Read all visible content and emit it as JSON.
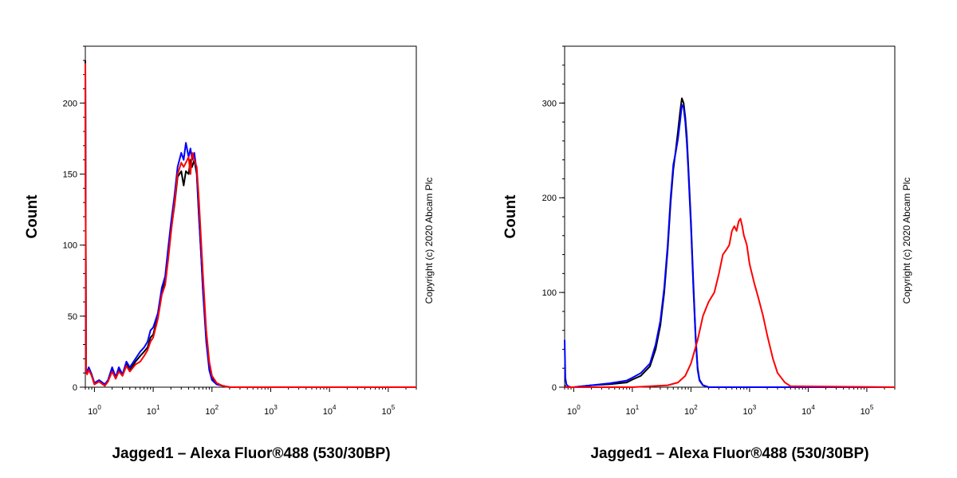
{
  "chart_data": [
    {
      "type": "line",
      "title": "",
      "xlabel": "Jagged1 – Alexa Fluor®488 (530/30BP)",
      "ylabel": "Count",
      "x_scale": "log",
      "xlim": [
        0.7,
        300000
      ],
      "ylim": [
        0,
        240
      ],
      "x_ticks": [
        {
          "base": "10",
          "exp": "0"
        },
        {
          "base": "10",
          "exp": "1"
        },
        {
          "base": "10",
          "exp": "2"
        },
        {
          "base": "10",
          "exp": "3"
        },
        {
          "base": "10",
          "exp": "4"
        },
        {
          "base": "10",
          "exp": "5"
        }
      ],
      "y_ticks": [
        "0",
        "50",
        "100",
        "150",
        "200"
      ],
      "y_tick_values": [
        0,
        50,
        100,
        150,
        200
      ],
      "copyright": "Copyright (c) 2020 Abcam Plc",
      "series": [
        {
          "color": "#000000",
          "x": [
            0.7,
            0.72,
            0.75,
            0.8,
            0.9,
            1.0,
            1.2,
            1.5,
            1.7,
            2.0,
            2.3,
            2.6,
            3.0,
            3.5,
            4,
            5,
            6,
            7,
            8,
            9,
            10,
            12,
            14,
            16,
            18,
            20,
            23,
            26,
            30,
            33,
            36,
            40,
            43,
            46,
            50,
            55,
            60,
            65,
            70,
            80,
            90,
            100,
            120,
            150,
            200,
            300,
            1000,
            10000,
            300000
          ],
          "y": [
            230,
            12,
            10,
            13,
            8,
            2,
            4,
            1,
            4,
            12,
            6,
            12,
            8,
            16,
            12,
            18,
            22,
            25,
            28,
            35,
            37,
            50,
            68,
            75,
            95,
            110,
            128,
            148,
            152,
            142,
            152,
            150,
            160,
            155,
            160,
            150,
            120,
            95,
            70,
            35,
            15,
            6,
            2,
            1,
            0,
            0,
            0,
            0,
            0
          ]
        },
        {
          "color": "#0000ff",
          "x": [
            0.7,
            0.72,
            0.75,
            0.8,
            0.9,
            1.0,
            1.2,
            1.5,
            1.7,
            2.0,
            2.3,
            2.6,
            3.0,
            3.5,
            4,
            5,
            6,
            7,
            8,
            9,
            10,
            12,
            14,
            16,
            18,
            20,
            23,
            26,
            30,
            33,
            36,
            40,
            43,
            46,
            50,
            55,
            60,
            65,
            70,
            80,
            90,
            100,
            120,
            150,
            200,
            300,
            1000,
            10000,
            300000
          ],
          "y": [
            225,
            13,
            11,
            14,
            9,
            3,
            5,
            2,
            5,
            14,
            7,
            14,
            9,
            18,
            14,
            20,
            25,
            28,
            32,
            40,
            42,
            52,
            70,
            78,
            98,
            115,
            135,
            155,
            165,
            160,
            172,
            162,
            168,
            160,
            165,
            152,
            122,
            95,
            68,
            32,
            12,
            5,
            2,
            1,
            0,
            0,
            0,
            0,
            0
          ]
        },
        {
          "color": "#ff0000",
          "x": [
            0.7,
            0.72,
            0.75,
            0.8,
            0.9,
            1.0,
            1.2,
            1.5,
            1.7,
            2.0,
            2.3,
            2.6,
            3.0,
            3.5,
            4,
            5,
            6,
            7,
            8,
            9,
            10,
            12,
            14,
            16,
            18,
            20,
            23,
            26,
            30,
            33,
            36,
            40,
            43,
            46,
            50,
            55,
            60,
            65,
            70,
            80,
            90,
            100,
            120,
            150,
            200,
            300,
            1000,
            10000,
            300000
          ],
          "y": [
            228,
            11,
            9,
            12,
            8,
            2,
            4,
            1,
            4,
            11,
            6,
            11,
            8,
            15,
            11,
            16,
            18,
            22,
            26,
            32,
            35,
            48,
            65,
            72,
            90,
            108,
            130,
            150,
            158,
            155,
            158,
            162,
            150,
            165,
            160,
            155,
            132,
            105,
            80,
            40,
            18,
            8,
            3,
            1,
            0,
            0,
            0,
            0,
            0
          ]
        }
      ]
    },
    {
      "type": "line",
      "title": "",
      "xlabel": "Jagged1 – Alexa Fluor®488 (530/30BP)",
      "ylabel": "Count",
      "x_scale": "log",
      "xlim": [
        0.7,
        300000
      ],
      "ylim": [
        0,
        360
      ],
      "x_ticks": [
        {
          "base": "10",
          "exp": "0"
        },
        {
          "base": "10",
          "exp": "1"
        },
        {
          "base": "10",
          "exp": "2"
        },
        {
          "base": "10",
          "exp": "3"
        },
        {
          "base": "10",
          "exp": "4"
        },
        {
          "base": "10",
          "exp": "5"
        }
      ],
      "y_ticks": [
        "0",
        "100",
        "200",
        "300"
      ],
      "y_tick_values": [
        0,
        100,
        200,
        300
      ],
      "copyright": "Copyright (c) 2020 Abcam Plc",
      "series": [
        {
          "color": "#000000",
          "x": [
            0.7,
            0.72,
            0.75,
            0.8,
            0.9,
            1.0,
            2,
            4,
            8,
            10,
            14,
            20,
            25,
            30,
            35,
            40,
            45,
            50,
            55,
            60,
            65,
            70,
            75,
            80,
            85,
            90,
            100,
            110,
            120,
            130,
            140,
            160,
            200,
            300,
            1000,
            300000
          ],
          "y": [
            2,
            1,
            0,
            0,
            0,
            0,
            2,
            3,
            5,
            8,
            12,
            22,
            40,
            65,
            100,
            145,
            195,
            230,
            250,
            270,
            290,
            305,
            300,
            285,
            265,
            235,
            175,
            110,
            55,
            20,
            8,
            2,
            0,
            0,
            0,
            0
          ]
        },
        {
          "color": "#0000ff",
          "x": [
            0.7,
            0.72,
            0.75,
            0.8,
            0.9,
            1.0,
            2,
            4,
            8,
            10,
            14,
            20,
            25,
            30,
            35,
            40,
            45,
            50,
            55,
            60,
            65,
            70,
            75,
            80,
            85,
            90,
            100,
            110,
            120,
            130,
            140,
            160,
            200,
            300,
            1000,
            300000
          ],
          "y": [
            50,
            10,
            3,
            1,
            0,
            0,
            2,
            4,
            7,
            10,
            15,
            25,
            45,
            70,
            105,
            150,
            200,
            235,
            248,
            262,
            280,
            298,
            295,
            280,
            258,
            230,
            170,
            105,
            52,
            18,
            7,
            2,
            0,
            0,
            0,
            0
          ]
        },
        {
          "color": "#ff0000",
          "x": [
            0.7,
            1,
            10,
            40,
            60,
            80,
            100,
            130,
            160,
            200,
            250,
            300,
            350,
            400,
            450,
            500,
            550,
            600,
            650,
            700,
            750,
            800,
            850,
            900,
            1000,
            1200,
            1400,
            1700,
            2000,
            2500,
            3000,
            4000,
            5000,
            300000
          ],
          "y": [
            0,
            0,
            0,
            2,
            5,
            12,
            25,
            50,
            75,
            90,
            100,
            120,
            140,
            145,
            150,
            165,
            170,
            165,
            175,
            178,
            170,
            160,
            155,
            150,
            130,
            110,
            95,
            75,
            55,
            30,
            15,
            5,
            1,
            0
          ]
        }
      ]
    }
  ]
}
